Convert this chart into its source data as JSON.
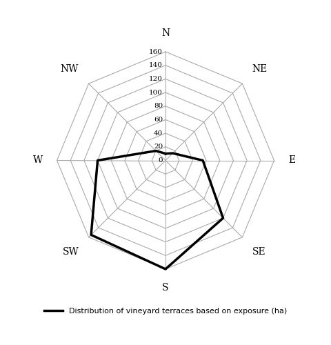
{
  "categories": [
    "N",
    "NE",
    "E",
    "SE",
    "S",
    "SW",
    "W",
    "NW"
  ],
  "values": [
    10,
    15,
    55,
    120,
    160,
    155,
    100,
    20
  ],
  "r_max": 160,
  "r_ticks": [
    20,
    40,
    60,
    80,
    100,
    120,
    140,
    160
  ],
  "r_tick_labels": [
    "20",
    "40",
    "60",
    "80",
    "100",
    "120",
    "140",
    "160"
  ],
  "line_color": "#000000",
  "line_width": 2.5,
  "grid_color": "#aaaaaa",
  "grid_linewidth": 0.8,
  "spoke_linewidth": 0.8,
  "legend_label": "Distribution of vineyard terraces based on exposure (ha)",
  "background_color": "#ffffff",
  "label_fontsize": 10,
  "tick_fontsize": 7.5
}
